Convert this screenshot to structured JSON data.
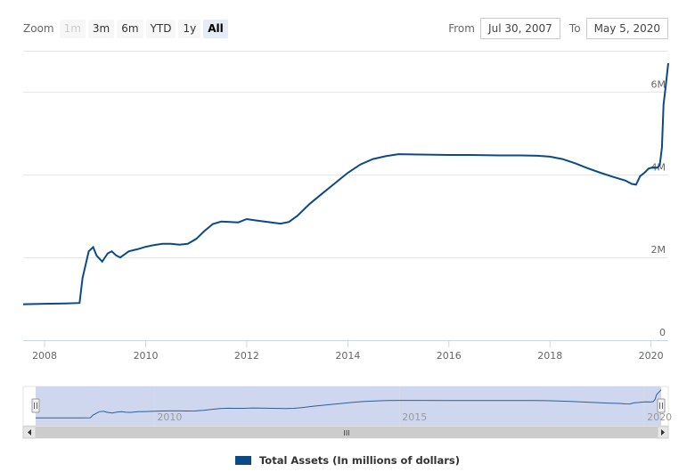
{
  "zoom": {
    "label": "Zoom",
    "buttons": [
      {
        "label": "1m",
        "state": "disabled"
      },
      {
        "label": "3m",
        "state": "normal"
      },
      {
        "label": "6m",
        "state": "normal"
      },
      {
        "label": "YTD",
        "state": "normal"
      },
      {
        "label": "1y",
        "state": "normal"
      },
      {
        "label": "All",
        "state": "active"
      }
    ]
  },
  "range": {
    "from_label": "From",
    "from_value": "Jul 30, 2007",
    "to_label": "To",
    "to_value": "May 5, 2020"
  },
  "navigator": {
    "tick_labels": [
      "2010",
      "2015",
      "2020"
    ],
    "scrollbar_grip": "III"
  },
  "colors": {
    "series": "#0c4a87",
    "navigator_fill": "#c5d0ea",
    "navigator_line": "#2d5f9a"
  },
  "chart_data": {
    "type": "line",
    "title": "",
    "xlabel": "",
    "ylabel": "",
    "x_ticks": [
      "2008",
      "2010",
      "2012",
      "2014",
      "2016",
      "2018",
      "2020"
    ],
    "y_ticks": [
      "0",
      "2M",
      "4M",
      "6M"
    ],
    "ylim": [
      0,
      7000000
    ],
    "xlim": [
      "2007-07-30",
      "2020-05-05"
    ],
    "grid": true,
    "legend_position": "bottom-center",
    "series": [
      {
        "name": "Total Assets (In millions of dollars)",
        "x": [
          "2007-07-30",
          "2008-01-01",
          "2008-06-01",
          "2008-09-10",
          "2008-10-01",
          "2008-11-15",
          "2008-12-17",
          "2009-01-10",
          "2009-02-20",
          "2009-04-01",
          "2009-05-01",
          "2009-06-01",
          "2009-07-01",
          "2009-09-01",
          "2009-11-01",
          "2010-01-01",
          "2010-03-01",
          "2010-05-01",
          "2010-07-01",
          "2010-09-01",
          "2010-11-01",
          "2011-01-01",
          "2011-03-01",
          "2011-05-01",
          "2011-07-01",
          "2011-09-01",
          "2011-11-01",
          "2012-01-01",
          "2012-03-01",
          "2012-06-01",
          "2012-09-01",
          "2012-11-01",
          "2013-01-01",
          "2013-04-01",
          "2013-07-01",
          "2013-10-01",
          "2014-01-01",
          "2014-04-01",
          "2014-07-01",
          "2014-10-01",
          "2015-01-01",
          "2015-06-01",
          "2016-01-01",
          "2016-06-01",
          "2017-01-01",
          "2017-06-01",
          "2017-10-01",
          "2018-01-01",
          "2018-04-01",
          "2018-07-01",
          "2018-10-01",
          "2019-01-01",
          "2019-04-01",
          "2019-07-01",
          "2019-08-15",
          "2019-09-15",
          "2019-10-15",
          "2019-11-15",
          "2019-12-15",
          "2020-01-15",
          "2020-02-15",
          "2020-03-05",
          "2020-03-20",
          "2020-04-01",
          "2020-04-15",
          "2020-05-05"
        ],
        "values": [
          870000,
          880000,
          890000,
          900000,
          1500000,
          2150000,
          2250000,
          2050000,
          1900000,
          2100000,
          2150000,
          2050000,
          2000000,
          2150000,
          2200000,
          2260000,
          2300000,
          2330000,
          2330000,
          2310000,
          2330000,
          2450000,
          2640000,
          2810000,
          2870000,
          2860000,
          2850000,
          2930000,
          2900000,
          2860000,
          2820000,
          2860000,
          3010000,
          3300000,
          3550000,
          3800000,
          4050000,
          4250000,
          4380000,
          4450000,
          4500000,
          4490000,
          4480000,
          4480000,
          4470000,
          4470000,
          4460000,
          4440000,
          4380000,
          4280000,
          4160000,
          4050000,
          3950000,
          3860000,
          3780000,
          3760000,
          3970000,
          4050000,
          4150000,
          4180000,
          4170000,
          4240000,
          4660000,
          5700000,
          6100000,
          6700000
        ]
      }
    ]
  }
}
